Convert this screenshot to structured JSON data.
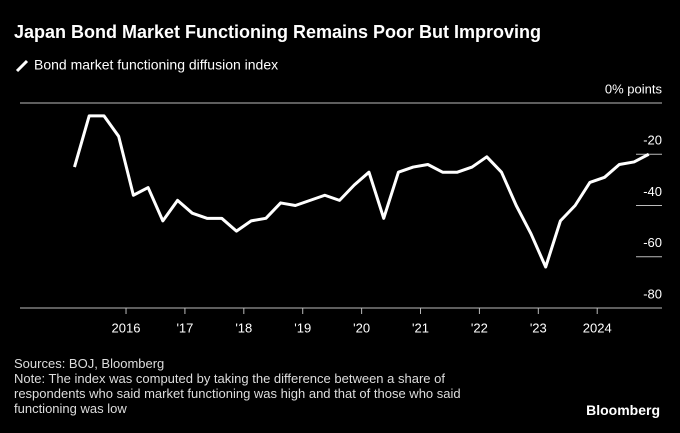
{
  "chart_data": {
    "type": "line",
    "title": "Japan Bond Market Functioning Remains Poor But Improving",
    "series": [
      {
        "name": "Bond market functioning diffusion index",
        "color": "#ffffff",
        "x": [
          2015.125,
          2015.375,
          2015.625,
          2015.875,
          2016.125,
          2016.375,
          2016.625,
          2016.875,
          2017.125,
          2017.375,
          2017.625,
          2017.875,
          2018.125,
          2018.375,
          2018.625,
          2018.875,
          2019.125,
          2019.375,
          2019.625,
          2019.875,
          2020.125,
          2020.375,
          2020.625,
          2020.875,
          2021.125,
          2021.375,
          2021.625,
          2021.875,
          2022.125,
          2022.375,
          2022.625,
          2022.875,
          2023.125,
          2023.375,
          2023.625,
          2023.875,
          2024.125,
          2024.375,
          2024.625,
          2024.875
        ],
        "values": [
          -25,
          -5,
          -5,
          -13,
          -36,
          -33,
          -46,
          -38,
          -43,
          -45,
          -45,
          -50,
          -46,
          -45,
          -39,
          -40,
          -38,
          -36,
          -38,
          -32,
          -27,
          -45,
          -27,
          -25,
          -24,
          -27,
          -27,
          -25,
          -21,
          -27,
          -40,
          -51,
          -64,
          -46,
          -40,
          -31,
          -29,
          -24,
          -23,
          -20
        ]
      }
    ],
    "xlim": [
      2014.2,
      2025.1
    ],
    "xticks": [
      2016,
      {
        "value": 2017,
        "label": "'17"
      },
      {
        "value": 2018,
        "label": "'18"
      },
      {
        "value": 2019,
        "label": "'19"
      },
      {
        "value": 2020,
        "label": "'20"
      },
      {
        "value": 2021,
        "label": "'21"
      },
      {
        "value": 2022,
        "label": "'22"
      },
      {
        "value": 2023,
        "label": "'23"
      },
      2024
    ],
    "ylim": [
      -80,
      0
    ],
    "yticks": [
      {
        "value": 0,
        "label": "0% points"
      },
      -20,
      -40,
      -60,
      -80
    ],
    "source": "Sources: BOJ, Bloomberg",
    "note": "Note: The index was computed by taking the difference between a share of respondents who said market functioning was high and that of those who said functioning was low",
    "brand": "Bloomberg"
  }
}
